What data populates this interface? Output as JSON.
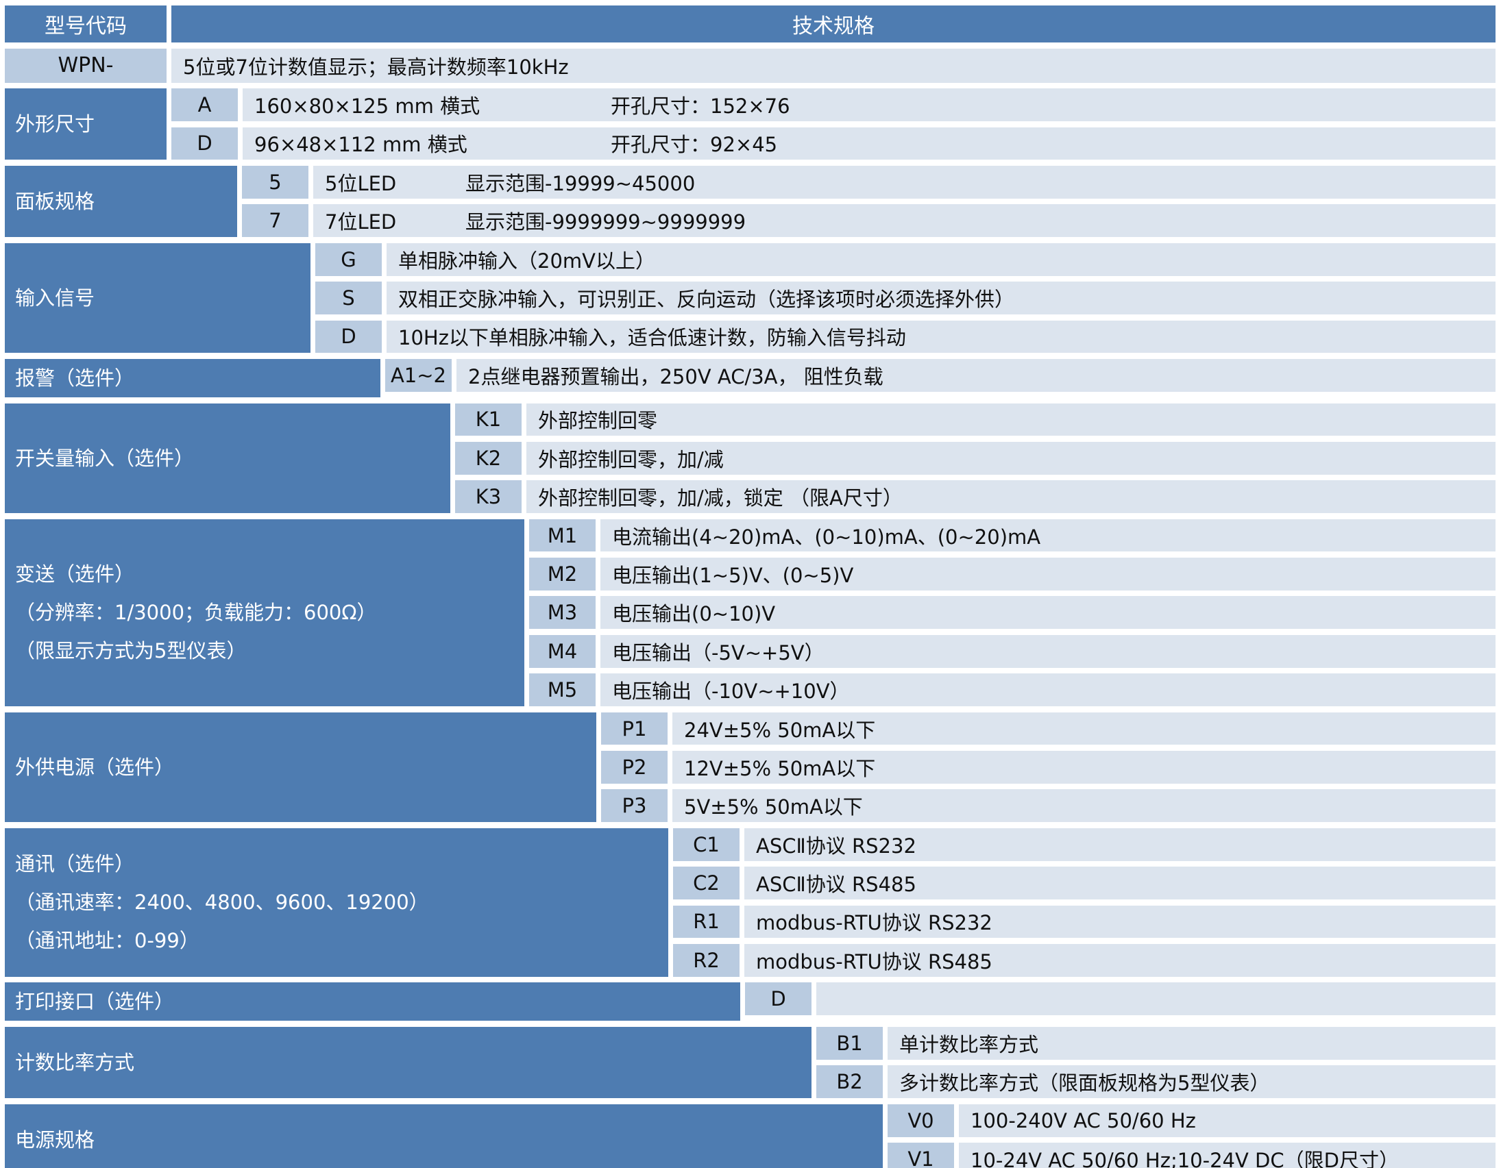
{
  "header": {
    "left": "型号代码",
    "right": "技术规格"
  },
  "model": {
    "code": "WPN-",
    "desc": "5位或7位计数值显示；最高计数频率10kHz"
  },
  "sections": [
    {
      "label": [
        "外形尺寸"
      ],
      "rows": [
        {
          "code": "A",
          "desc": "160×80×125 mm 横式",
          "desc2": "开孔尺寸：152×76"
        },
        {
          "code": "D",
          "desc": "96×48×112 mm 横式",
          "desc2": "开孔尺寸：92×45"
        }
      ]
    },
    {
      "label": [
        "面板规格"
      ],
      "rows": [
        {
          "code": "5",
          "desc": "5位LED",
          "desc2": "显示范围-19999~45000"
        },
        {
          "code": "7",
          "desc": "7位LED",
          "desc2": "显示范围-9999999~9999999"
        }
      ]
    },
    {
      "label": [
        "输入信号"
      ],
      "rows": [
        {
          "code": "G",
          "desc": "单相脉冲输入（20mV以上）"
        },
        {
          "code": "S",
          "desc": "双相正交脉冲输入，可识别正、反向运动（选择该项时必须选择外供）"
        },
        {
          "code": "D",
          "desc": "10Hz以下单相脉冲输入，适合低速计数，防输入信号抖动"
        }
      ]
    },
    {
      "label": [
        "报警（选件）"
      ],
      "rows": [
        {
          "code": "A1~2",
          "desc": "2点继电器预置输出，250V AC/3A， 阻性负载"
        }
      ]
    },
    {
      "label": [
        "开关量输入（选件）"
      ],
      "rows": [
        {
          "code": "K1",
          "desc": "外部控制回零"
        },
        {
          "code": "K2",
          "desc": "外部控制回零，加/减"
        },
        {
          "code": "K3",
          "desc": "外部控制回零，加/减，锁定 （限A尺寸）"
        }
      ]
    },
    {
      "label": [
        "变送（选件）",
        "（分辨率：1/3000；负载能力：600Ω）",
        "（限显示方式为5型仪表）"
      ],
      "rows": [
        {
          "code": "M1",
          "desc": "电流输出(4~20)mA、(0~10)mA、(0~20)mA"
        },
        {
          "code": "M2",
          "desc": "电压输出(1~5)V、(0~5)V"
        },
        {
          "code": "M3",
          "desc": "电压输出(0~10)V"
        },
        {
          "code": "M4",
          "desc": "电压输出（-5V~+5V）"
        },
        {
          "code": "M5",
          "desc": "电压输出（-10V~+10V）"
        }
      ]
    },
    {
      "label": [
        "外供电源（选件）"
      ],
      "rows": [
        {
          "code": "P1",
          "desc": "24V±5% 50mA以下"
        },
        {
          "code": "P2",
          "desc": "12V±5% 50mA以下"
        },
        {
          "code": "P3",
          "desc": "5V±5% 50mA以下"
        }
      ]
    },
    {
      "label": [
        "通讯（选件）",
        "（通讯速率：2400、4800、9600、19200）",
        "（通讯地址：0-99）"
      ],
      "rows": [
        {
          "code": "C1",
          "desc": "ASCⅡ协议 RS232"
        },
        {
          "code": "C2",
          "desc": "ASCⅡ协议 RS485"
        },
        {
          "code": "R1",
          "desc": "modbus-RTU协议 RS232"
        },
        {
          "code": "R2",
          "desc": "modbus-RTU协议 RS485"
        }
      ]
    },
    {
      "label": [
        "打印接口（选件）"
      ],
      "rows": [
        {
          "code": "D",
          "desc": ""
        }
      ]
    },
    {
      "label": [
        "计数比率方式"
      ],
      "rows": [
        {
          "code": "B1",
          "desc": "单计数比率方式"
        },
        {
          "code": "B2",
          "desc": "多计数比率方式（限面板规格为5型仪表）"
        }
      ]
    },
    {
      "label": [
        "电源规格"
      ],
      "rows": [
        {
          "code": "V0",
          "desc": "100-240V AC 50/60 Hz"
        },
        {
          "code": "V1",
          "desc": "10-24V AC 50/60 Hz;10-24V DC（限D尺寸）"
        }
      ]
    }
  ],
  "colors": {
    "header_blue": "#4e7cb1",
    "code_cell_blue": "#b9cbe0",
    "desc_cell_blue": "#dce4ee",
    "text": "#101010"
  }
}
